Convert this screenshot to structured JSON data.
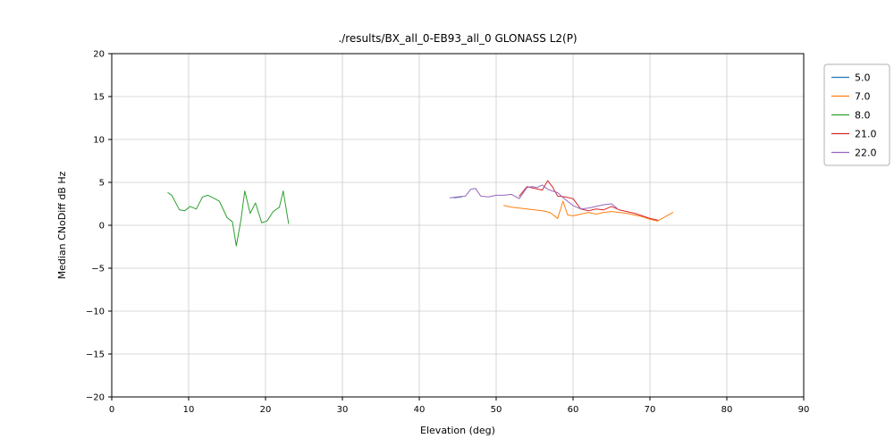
{
  "chart_data": {
    "type": "line",
    "title": "./results/BX_all_0-EB93_all_0 GLONASS L2(P)",
    "xlabel": "Elevation (deg)",
    "ylabel": "Median CNoDiff dB Hz",
    "xlim": [
      0,
      90
    ],
    "ylim": [
      -20,
      20
    ],
    "xticks": [
      0,
      10,
      20,
      30,
      40,
      50,
      60,
      70,
      80,
      90
    ],
    "yticks": [
      -20,
      -15,
      -10,
      -5,
      0,
      5,
      10,
      15,
      20
    ],
    "grid": true,
    "legend_position": "outside upper right",
    "colors": {
      "grid": "#cccccc",
      "axis": "#000000",
      "legend_border": "#b0b0b0"
    },
    "series": [
      {
        "name": "5.0",
        "color": "#1f77b4",
        "x": [
          44.5,
          45.5
        ],
        "y": [
          3.2,
          3.3
        ]
      },
      {
        "name": "7.0",
        "color": "#ff7f0e",
        "x": [
          51,
          52,
          53,
          54,
          55,
          56,
          57,
          58,
          58.7,
          59.3,
          60,
          61,
          62,
          63,
          64,
          65,
          66,
          67,
          68,
          69,
          70,
          71,
          72,
          73
        ],
        "y": [
          2.3,
          2.1,
          2.0,
          1.9,
          1.8,
          1.7,
          1.5,
          0.8,
          2.8,
          1.2,
          1.1,
          1.3,
          1.5,
          1.3,
          1.5,
          1.6,
          1.5,
          1.4,
          1.2,
          1.0,
          0.7,
          0.5,
          1.0,
          1.5
        ]
      },
      {
        "name": "8.0",
        "color": "#2ca02c",
        "x": [
          7.3,
          7.8,
          8.8,
          9.5,
          10.2,
          11,
          11.8,
          12.5,
          13.2,
          14,
          15,
          15.7,
          16.2,
          16.8,
          17.3,
          18,
          18.7,
          19.5,
          20.2,
          21,
          21.8,
          22.3,
          23
        ],
        "y": [
          3.8,
          3.5,
          1.8,
          1.7,
          2.2,
          1.9,
          3.3,
          3.5,
          3.2,
          2.8,
          0.9,
          0.4,
          -2.4,
          0.6,
          4.0,
          1.4,
          2.6,
          0.3,
          0.5,
          1.6,
          2.1,
          4.0,
          0.2
        ]
      },
      {
        "name": "21.0",
        "color": "#d62728",
        "x": [
          53,
          54,
          55,
          56,
          56.7,
          57.3,
          58,
          59,
          60,
          61,
          62,
          63,
          64,
          65,
          66,
          67,
          68,
          69,
          70,
          71
        ],
        "y": [
          3.4,
          4.5,
          4.3,
          4.1,
          5.2,
          4.5,
          3.4,
          3.3,
          3.1,
          1.9,
          1.7,
          1.9,
          1.8,
          2.2,
          1.8,
          1.6,
          1.4,
          1.1,
          0.8,
          0.6
        ]
      },
      {
        "name": "22.0",
        "color": "#9467bd",
        "x": [
          44,
          45,
          46,
          46.7,
          47.3,
          48,
          49,
          50,
          51,
          52,
          53,
          54,
          54.7,
          55.3,
          56,
          56.7,
          57.3,
          58,
          59,
          60,
          61,
          62,
          63,
          64,
          65,
          65.7
        ],
        "y": [
          3.2,
          3.3,
          3.4,
          4.2,
          4.3,
          3.4,
          3.3,
          3.5,
          3.5,
          3.6,
          3.1,
          4.4,
          4.5,
          4.4,
          4.7,
          4.2,
          4.0,
          3.8,
          3.0,
          2.3,
          1.9,
          2.0,
          2.2,
          2.4,
          2.5,
          2.0
        ]
      }
    ]
  }
}
